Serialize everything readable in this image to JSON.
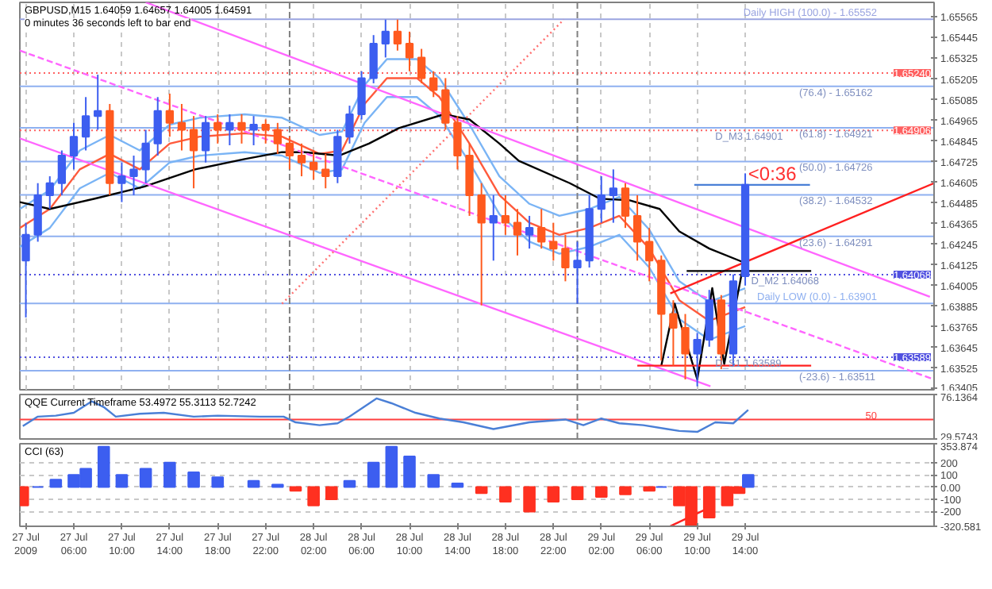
{
  "chart_data": [
    {
      "type": "candlestick",
      "title": "GBPUSD,M15  1.64059 1.64657 1.64005 1.64591",
      "annotations": [
        "0 minutes 36 seconds left to bar end",
        {
          "text": "<0:36",
          "x": "2009-07-29T14:15",
          "y": 1.6459
        },
        {
          "text": "D_M3 1.64901",
          "x": "2009-07-29T11:30",
          "y": 1.64906
        },
        {
          "text": "D_M2 1.64068",
          "x": "2009-07-29T14:30",
          "y": 1.64068
        },
        {
          "text": "D_S1 1.63589",
          "x": "2009-07-29T11:30",
          "y": 1.63589
        },
        {
          "text": "(76.4) - 1.65162",
          "x": "2009-07-29T18:30",
          "y": 1.65162
        },
        {
          "text": "(61.8) - 1.64921",
          "x": "2009-07-29T18:30",
          "y": 1.64921
        },
        {
          "text": "(50.0) - 1.64726",
          "x": "2009-07-29T18:30",
          "y": 1.64726
        },
        {
          "text": "(38.2) - 1.64532",
          "x": "2009-07-29T18:30",
          "y": 1.64532
        },
        {
          "text": "(23.6) - 1.64291",
          "x": "2009-07-29T18:30",
          "y": 1.64291
        },
        {
          "text": "(-23.6) - 1.63511",
          "x": "2009-07-29T18:30",
          "y": 1.63511
        }
      ],
      "x": [
        "2009-07-27T02:00",
        "2009-07-27T03:00",
        "2009-07-27T04:00",
        "2009-07-27T05:00",
        "2009-07-27T06:00",
        "2009-07-27T07:00",
        "2009-07-27T08:00",
        "2009-07-27T09:00",
        "2009-07-27T10:00",
        "2009-07-27T11:00",
        "2009-07-27T12:00",
        "2009-07-27T13:00",
        "2009-07-27T14:00",
        "2009-07-27T15:00",
        "2009-07-27T16:00",
        "2009-07-27T17:00",
        "2009-07-27T18:00",
        "2009-07-27T19:00",
        "2009-07-27T20:00",
        "2009-07-27T21:00",
        "2009-07-27T22:00",
        "2009-07-27T23:00",
        "2009-07-28T00:00",
        "2009-07-28T01:00",
        "2009-07-28T02:00",
        "2009-07-28T03:00",
        "2009-07-28T04:00",
        "2009-07-28T05:00",
        "2009-07-28T06:00",
        "2009-07-28T07:00",
        "2009-07-28T08:00",
        "2009-07-28T09:00",
        "2009-07-28T10:00",
        "2009-07-28T11:00",
        "2009-07-28T12:00",
        "2009-07-28T13:00",
        "2009-07-28T14:00",
        "2009-07-28T15:00",
        "2009-07-28T16:00",
        "2009-07-28T17:00",
        "2009-07-28T18:00",
        "2009-07-28T19:00",
        "2009-07-28T20:00",
        "2009-07-28T21:00",
        "2009-07-28T22:00",
        "2009-07-28T23:00",
        "2009-07-29T00:00",
        "2009-07-29T01:00",
        "2009-07-29T02:00",
        "2009-07-29T03:00",
        "2009-07-29T04:00",
        "2009-07-29T05:00",
        "2009-07-29T06:00",
        "2009-07-29T07:00",
        "2009-07-29T08:00",
        "2009-07-29T09:00",
        "2009-07-29T10:00",
        "2009-07-29T11:00",
        "2009-07-29T12:00",
        "2009-07-29T13:00",
        "2009-07-29T14:00"
      ],
      "ohlc": [
        [
          1.6415,
          1.6437,
          1.6382,
          1.643
        ],
        [
          1.643,
          1.646,
          1.6426,
          1.6453
        ],
        [
          1.6453,
          1.6464,
          1.6445,
          1.646
        ],
        [
          1.646,
          1.6479,
          1.6453,
          1.6476
        ],
        [
          1.6476,
          1.6495,
          1.6468,
          1.6487
        ],
        [
          1.6487,
          1.651,
          1.6479,
          1.6499
        ],
        [
          1.6499,
          1.6523,
          1.6491,
          1.6502
        ],
        [
          1.6502,
          1.6506,
          1.6453,
          1.646
        ],
        [
          1.646,
          1.6472,
          1.6449,
          1.6464
        ],
        [
          1.6464,
          1.6476,
          1.6453,
          1.6468
        ],
        [
          1.6468,
          1.6491,
          1.646,
          1.6483
        ],
        [
          1.6483,
          1.651,
          1.6476,
          1.6502
        ],
        [
          1.6502,
          1.6512,
          1.6487,
          1.6495
        ],
        [
          1.6495,
          1.6506,
          1.6479,
          1.6491
        ],
        [
          1.6491,
          1.6499,
          1.6457,
          1.6479
        ],
        [
          1.6479,
          1.6499,
          1.6472,
          1.6495
        ],
        [
          1.6495,
          1.65,
          1.6483,
          1.6491
        ],
        [
          1.6491,
          1.65,
          1.6482,
          1.6495
        ],
        [
          1.6495,
          1.65,
          1.6483,
          1.6491
        ],
        [
          1.6491,
          1.6499,
          1.6482,
          1.6494
        ],
        [
          1.6494,
          1.6497,
          1.6483,
          1.6491
        ],
        [
          1.6491,
          1.6495,
          1.6477,
          1.6483
        ],
        [
          1.6483,
          1.6487,
          1.6468,
          1.6476
        ],
        [
          1.6476,
          1.6483,
          1.6464,
          1.6472
        ],
        [
          1.6472,
          1.6479,
          1.6462,
          1.6468
        ],
        [
          1.6468,
          1.6477,
          1.6457,
          1.6464
        ],
        [
          1.6464,
          1.6491,
          1.646,
          1.6487
        ],
        [
          1.6487,
          1.6505,
          1.6483,
          1.65
        ],
        [
          1.65,
          1.6525,
          1.6497,
          1.6521
        ],
        [
          1.6521,
          1.6546,
          1.6518,
          1.6541
        ],
        [
          1.6541,
          1.6555,
          1.6533,
          1.6548
        ],
        [
          1.6548,
          1.6555,
          1.6537,
          1.6541
        ],
        [
          1.6541,
          1.6548,
          1.6525,
          1.6533
        ],
        [
          1.6533,
          1.6538,
          1.6518,
          1.6521
        ],
        [
          1.6521,
          1.6525,
          1.651,
          1.6514
        ],
        [
          1.6514,
          1.6521,
          1.6491,
          1.6495
        ],
        [
          1.6495,
          1.6499,
          1.6468,
          1.6476
        ],
        [
          1.6476,
          1.6483,
          1.6441,
          1.6453
        ],
        [
          1.6453,
          1.646,
          1.6389,
          1.6437
        ],
        [
          1.6437,
          1.6453,
          1.6415,
          1.6441
        ],
        [
          1.6441,
          1.6453,
          1.643,
          1.6437
        ],
        [
          1.6437,
          1.6445,
          1.6418,
          1.643
        ],
        [
          1.643,
          1.6441,
          1.6422,
          1.6434
        ],
        [
          1.6434,
          1.6445,
          1.6422,
          1.6426
        ],
        [
          1.6426,
          1.6437,
          1.6415,
          1.6422
        ],
        [
          1.6422,
          1.643,
          1.6403,
          1.6411
        ],
        [
          1.6411,
          1.6426,
          1.639,
          1.6415
        ],
        [
          1.6415,
          1.6453,
          1.6411,
          1.6445
        ],
        [
          1.6445,
          1.6464,
          1.6437,
          1.6453
        ],
        [
          1.6453,
          1.6468,
          1.6437,
          1.6457
        ],
        [
          1.6457,
          1.646,
          1.6434,
          1.6441
        ],
        [
          1.6441,
          1.6453,
          1.6415,
          1.6426
        ],
        [
          1.6426,
          1.6434,
          1.6403,
          1.6415
        ],
        [
          1.6415,
          1.6418,
          1.6357,
          1.6384
        ],
        [
          1.6384,
          1.6392,
          1.6354,
          1.6376
        ],
        [
          1.6376,
          1.6384,
          1.6346,
          1.6361
        ],
        [
          1.6361,
          1.6373,
          1.6342,
          1.6369
        ],
        [
          1.6369,
          1.6398,
          1.6365,
          1.6392
        ],
        [
          1.6392,
          1.6395,
          1.6352,
          1.6361
        ],
        [
          1.6361,
          1.6407,
          1.6354,
          1.6403
        ],
        [
          1.64059,
          1.64657,
          1.64005,
          1.64591
        ]
      ],
      "colors": [
        "#3c5ef0",
        "#3c5ef0",
        "#3c5ef0",
        "#3c5ef0",
        "#3c5ef0",
        "#3c5ef0",
        "#3c5ef0",
        "#ff5a1e",
        "#3c5ef0",
        "#3c5ef0",
        "#3c5ef0",
        "#3c5ef0",
        "#ff5a1e",
        "#ff5a1e",
        "#ff5a1e",
        "#3c5ef0",
        "#ff5a1e",
        "#3c5ef0",
        "#ff5a1e",
        "#3c5ef0",
        "#ff5a1e",
        "#ff5a1e",
        "#ff5a1e",
        "#ff5a1e",
        "#ff5a1e",
        "#ff5a1e",
        "#3c5ef0",
        "#3c5ef0",
        "#3c5ef0",
        "#3c5ef0",
        "#3c5ef0",
        "#ff5a1e",
        "#ff5a1e",
        "#ff5a1e",
        "#ff5a1e",
        "#ff5a1e",
        "#ff5a1e",
        "#ff5a1e",
        "#ff5a1e",
        "#3c5ef0",
        "#ff5a1e",
        "#ff5a1e",
        "#3c5ef0",
        "#ff5a1e",
        "#ff5a1e",
        "#ff5a1e",
        "#3c5ef0",
        "#3c5ef0",
        "#3c5ef0",
        "#3c5ef0",
        "#ff5a1e",
        "#ff5a1e",
        "#ff5a1e",
        "#ff5a1e",
        "#ff5a1e",
        "#ff5a1e",
        "#3c5ef0",
        "#3c5ef0",
        "#ff5a1e",
        "#3c5ef0",
        "#3c5ef0"
      ],
      "series": [
        {
          "type": "line",
          "color": "#7ab4f5",
          "x": [
            "2009-07-27T01:30",
            "2009-07-27T04:00",
            "2009-07-27T06:30",
            "2009-07-27T09:00",
            "2009-07-27T11:30",
            "2009-07-27T14:00",
            "2009-07-27T16:30",
            "2009-07-27T20:15",
            "2009-07-27T23:22",
            "2009-07-28T02:30",
            "2009-07-28T04:22",
            "2009-07-28T06:15",
            "2009-07-28T08:07",
            "2009-07-28T10:37",
            "2009-07-28T12:30",
            "2009-07-28T15:00",
            "2009-07-28T17:30",
            "2009-07-28T20:00",
            "2009-07-28T22:30",
            "2009-07-29T01:00",
            "2009-07-29T03:30",
            "2009-07-29T06:00",
            "2009-07-29T08:30",
            "2009-07-29T11:00",
            "2009-07-29T14:00"
          ],
          "values": [
            1.6445,
            1.6456,
            1.6479,
            1.6488,
            1.6479,
            1.6494,
            1.6498,
            1.65,
            1.6498,
            1.6488,
            1.649,
            1.6517,
            1.6532,
            1.6532,
            1.6521,
            1.6494,
            1.6464,
            1.6448,
            1.6441,
            1.6445,
            1.6452,
            1.6433,
            1.6403,
            1.6391,
            1.6399
          ]
        },
        {
          "type": "line",
          "color": "#7ab4f5",
          "x": [
            "2009-07-27T01:30",
            "2009-07-27T04:00",
            "2009-07-27T06:30",
            "2009-07-27T09:00",
            "2009-07-27T11:30",
            "2009-07-27T14:00",
            "2009-07-27T16:30",
            "2009-07-27T20:15",
            "2009-07-27T23:22",
            "2009-07-28T02:30",
            "2009-07-28T04:22",
            "2009-07-28T06:15",
            "2009-07-28T08:07",
            "2009-07-28T10:37",
            "2009-07-28T12:30",
            "2009-07-28T15:00",
            "2009-07-28T17:30",
            "2009-07-28T20:00",
            "2009-07-28T22:30",
            "2009-07-29T01:00",
            "2009-07-29T03:30",
            "2009-07-29T06:00",
            "2009-07-29T08:30",
            "2009-07-29T11:00",
            "2009-07-29T14:00"
          ],
          "values": [
            1.6423,
            1.6434,
            1.6457,
            1.6466,
            1.6457,
            1.6472,
            1.6476,
            1.6478,
            1.6476,
            1.6466,
            1.6468,
            1.6495,
            1.651,
            1.651,
            1.6499,
            1.6472,
            1.6442,
            1.6426,
            1.6419,
            1.6423,
            1.643,
            1.6411,
            1.6381,
            1.6369,
            1.6377
          ]
        },
        {
          "type": "line",
          "color": "#ff5a3c",
          "x": [
            "2009-07-27T01:30",
            "2009-07-27T04:00",
            "2009-07-27T06:30",
            "2009-07-27T09:00",
            "2009-07-27T11:30",
            "2009-07-27T14:00",
            "2009-07-27T16:30",
            "2009-07-27T20:15",
            "2009-07-27T23:22",
            "2009-07-28T02:30",
            "2009-07-28T04:22",
            "2009-07-28T06:15",
            "2009-07-28T08:07",
            "2009-07-28T10:37",
            "2009-07-28T12:30",
            "2009-07-28T15:00",
            "2009-07-28T17:30",
            "2009-07-28T20:00",
            "2009-07-28T22:30",
            "2009-07-29T01:00",
            "2009-07-29T03:30",
            "2009-07-29T06:00",
            "2009-07-29T08:30",
            "2009-07-29T11:00",
            "2009-07-29T14:00"
          ],
          "values": [
            1.6434,
            1.6445,
            1.6468,
            1.6477,
            1.6468,
            1.6483,
            1.6487,
            1.6489,
            1.6487,
            1.6477,
            1.6479,
            1.6506,
            1.6521,
            1.6521,
            1.651,
            1.6483,
            1.6453,
            1.6437,
            1.643,
            1.6434,
            1.6441,
            1.6422,
            1.6392,
            1.638,
            1.6388
          ]
        },
        {
          "type": "line",
          "color": "#000000",
          "x": [
            "2009-07-27T01:30",
            "2009-07-27T04:00",
            "2009-07-27T07:45",
            "2009-07-27T11:52",
            "2009-07-27T16:07",
            "2009-07-27T20:15",
            "2009-07-27T23:22",
            "2009-07-28T01:15",
            "2009-07-28T04:07",
            "2009-07-28T06:37",
            "2009-07-28T09:07",
            "2009-07-28T12:52",
            "2009-07-28T15:00",
            "2009-07-28T17:30",
            "2009-07-28T19:07",
            "2009-07-28T23:22",
            "2009-07-29T01:52",
            "2009-07-29T04:22",
            "2009-07-29T06:52",
            "2009-07-29T08:30",
            "2009-07-29T11:00",
            "2009-07-29T13:52"
          ],
          "values": [
            1.6449,
            1.6445,
            1.6451,
            1.6458,
            1.6468,
            1.6474,
            1.6478,
            1.6478,
            1.6476,
            1.6483,
            1.6492,
            1.65,
            1.6497,
            1.6483,
            1.6473,
            1.646,
            1.6451,
            1.645,
            1.6445,
            1.6432,
            1.6422,
            1.6414
          ]
        },
        {
          "type": "line",
          "color": "#ff66ff",
          "x": [
            "2009-07-27T12:00",
            "2009-07-30T05:24"
          ],
          "values": [
            1.6565,
            1.6394
          ]
        },
        {
          "type": "line",
          "color": "#ff66ff",
          "x": [
            "2009-07-27T01:30",
            "2009-07-29T11:06"
          ],
          "values": [
            1.6486,
            1.6342
          ]
        },
        {
          "type": "line",
          "color": "#ff66ff",
          "line_style": "dashed",
          "x": [
            "2009-07-27T01:30",
            "2009-07-30T05:45"
          ],
          "values": [
            1.6537,
            1.6346
          ]
        },
        {
          "type": "line",
          "color": "#ff7070",
          "line_style": "dotted",
          "x": [
            "2009-07-27T23:22",
            "2009-07-28T22:52"
          ],
          "values": [
            1.639,
            1.6555
          ]
        },
        {
          "type": "line",
          "color": "#ff2020",
          "x": [
            "2009-07-29T07:45",
            "2009-07-30T05:45"
          ],
          "values": [
            1.6396,
            1.646
          ]
        },
        {
          "type": "line",
          "color": "#000000",
          "x": [
            "2009-07-29T07:00",
            "2009-07-29T08:07",
            "2009-07-29T10:00",
            "2009-07-29T11:15",
            "2009-07-29T12:15",
            "2009-07-29T13:45"
          ],
          "values": [
            1.6354,
            1.639,
            1.6346,
            1.6399,
            1.6355,
            1.6409
          ]
        },
        {
          "type": "line",
          "color": "#000000",
          "x": [
            "2009-07-29T09:07",
            "2009-07-29T19:30"
          ],
          "values": [
            1.6409,
            1.6409
          ]
        },
        {
          "type": "line",
          "color": "#ff2020",
          "x": [
            "2009-07-29T05:00",
            "2009-07-29T19:30"
          ],
          "values": [
            1.6354,
            1.6354
          ]
        },
        {
          "type": "line",
          "color": "#4a7fd6",
          "x": [
            "2009-07-29T09:45",
            "2009-07-29T19:24"
          ],
          "values": [
            1.6459,
            1.6459
          ]
        }
      ],
      "xlim": [
        "2009-07-27T01:30",
        "2009-07-30T05:45"
      ],
      "xticks": [
        {
          "value": "2009-07-27T02:00",
          "label": null
        },
        {
          "value": "2009-07-27T06:00",
          "label": null
        },
        {
          "value": "2009-07-27T10:00",
          "label": null
        },
        {
          "value": "2009-07-27T14:00",
          "label": null
        },
        {
          "value": "2009-07-27T18:00",
          "label": null
        },
        {
          "value": "2009-07-27T22:00",
          "label": null
        },
        {
          "value": "2009-07-28T02:00",
          "label": null
        },
        {
          "value": "2009-07-28T06:00",
          "label": null
        },
        {
          "value": "2009-07-28T10:00",
          "label": null
        },
        {
          "value": "2009-07-28T14:00",
          "label": null
        },
        {
          "value": "2009-07-28T18:00",
          "label": null
        },
        {
          "value": "2009-07-28T22:00",
          "label": null
        },
        {
          "value": "2009-07-29T02:00",
          "label": null
        },
        {
          "value": "2009-07-29T06:00",
          "label": null
        },
        {
          "value": "2009-07-29T10:00",
          "label": null
        },
        {
          "value": "2009-07-29T14:00",
          "label": null
        }
      ],
      "ylim": [
        1.634,
        1.6565
      ],
      "yticks": [
        1.63405,
        1.63525,
        1.63645,
        1.63765,
        1.63885,
        1.64005,
        1.64125,
        1.64245,
        1.64365,
        1.64485,
        1.64605,
        1.64725,
        1.64845,
        1.64965,
        1.65085,
        1.65205,
        1.65325,
        1.65445,
        1.65565
      ],
      "tick_labels": "y",
      "grid": "x",
      "ref_lines": [
        {
          "axis": "y",
          "value": 1.65552,
          "label": "Daily HIGH (100.0) - 1.65552",
          "color": "#9aa4e0"
        },
        {
          "axis": "y",
          "value": 1.65162,
          "label": null,
          "color": "#8fb0f0"
        },
        {
          "axis": "y",
          "value": 1.64921,
          "label": null,
          "color": "#8fb0f0"
        },
        {
          "axis": "y",
          "value": 1.64726,
          "label": null,
          "color": "#8fb0f0"
        },
        {
          "axis": "y",
          "value": 1.64532,
          "label": null,
          "color": "#8fb0f0"
        },
        {
          "axis": "y",
          "value": 1.64291,
          "label": null,
          "color": "#8fb0f0"
        },
        {
          "axis": "y",
          "value": 1.63901,
          "label": "Daily LOW (0.0) - 1.63901",
          "color": "#8fb0f0"
        },
        {
          "axis": "y",
          "value": 1.63511,
          "label": null,
          "color": "#8fb0f0"
        },
        {
          "axis": "y",
          "value": 1.6524,
          "label": "1.65240",
          "color": "#ff6060",
          "line_style": "dotted"
        },
        {
          "axis": "y",
          "value": 1.64906,
          "label": "1.64906",
          "color": "#ff6060",
          "line_style": "dotted"
        },
        {
          "axis": "y",
          "value": 1.64068,
          "label": "1.64068",
          "color": "#5050e0",
          "line_style": "dotted"
        },
        {
          "axis": "y",
          "value": 1.63589,
          "label": "1.63589",
          "color": "#5050e0",
          "line_style": "dotted"
        },
        {
          "axis": "x",
          "value": "2009-07-28T00:00",
          "label": null,
          "color": "#808080",
          "line_style": "dashed"
        },
        {
          "axis": "x",
          "value": "2009-07-29T00:00",
          "label": null,
          "color": "#808080",
          "line_style": "dashed"
        }
      ]
    },
    {
      "type": "line",
      "title": "QQE Current Timeframe 53.4972 55.3113 52.7242",
      "series": [
        {
          "color": "#4a7fd6",
          "x": [
            "2009-07-27T01:45",
            "2009-07-27T03:00",
            "2009-07-27T04:30",
            "2009-07-27T06:00",
            "2009-07-27T07:30",
            "2009-07-27T08:30",
            "2009-07-27T09:30",
            "2009-07-27T11:30",
            "2009-07-27T13:30",
            "2009-07-27T16:00",
            "2009-07-27T18:00",
            "2009-07-27T21:30",
            "2009-07-27T23:30",
            "2009-07-28T00:30",
            "2009-07-28T02:30",
            "2009-07-28T04:00",
            "2009-07-28T05:00",
            "2009-07-28T07:15",
            "2009-07-28T08:30",
            "2009-07-28T10:30",
            "2009-07-28T12:30",
            "2009-07-28T14:30",
            "2009-07-28T17:00",
            "2009-07-28T20:00",
            "2009-07-28T23:00",
            "2009-07-29T00:30",
            "2009-07-29T02:00",
            "2009-07-29T03:30",
            "2009-07-29T05:30",
            "2009-07-29T07:30",
            "2009-07-29T08:30",
            "2009-07-29T10:00",
            "2009-07-29T11:30",
            "2009-07-29T13:00",
            "2009-07-29T14:15"
          ],
          "values": [
            43,
            53,
            54,
            57,
            69,
            63,
            53,
            56,
            57,
            53,
            54,
            53,
            53,
            47,
            44,
            46,
            53,
            72,
            67,
            57,
            51,
            47,
            40,
            47,
            50,
            44,
            51,
            46,
            44,
            40,
            38,
            37,
            47,
            46,
            60
          ]
        }
      ],
      "xlim": [
        "2009-07-27T01:30",
        "2009-07-30T05:45"
      ],
      "ylim": [
        29.5743,
        76.1364
      ],
      "yticks": [
        29.5743,
        76.1364
      ],
      "tick_labels": "y",
      "ref_lines": [
        {
          "axis": "y",
          "value": 50,
          "label": "50",
          "color": "#ff4040"
        },
        {
          "axis": "x",
          "value": "2009-07-28T00:00",
          "label": null,
          "color": "#808080",
          "line_style": "dashed"
        },
        {
          "axis": "x",
          "value": "2009-07-29T00:00",
          "label": null,
          "color": "#808080",
          "line_style": "dashed"
        }
      ]
    },
    {
      "type": "bar",
      "title": "CCI (63)",
      "x": [
        "2009-07-27T01:45",
        "2009-07-27T03:00",
        "2009-07-27T04:30",
        "2009-07-27T06:00",
        "2009-07-27T07:00",
        "2009-07-27T08:30",
        "2009-07-27T10:00",
        "2009-07-27T12:00",
        "2009-07-27T14:00",
        "2009-07-27T16:00",
        "2009-07-27T18:00",
        "2009-07-27T21:00",
        "2009-07-27T23:00",
        "2009-07-28T00:30",
        "2009-07-28T02:00",
        "2009-07-28T03:30",
        "2009-07-28T05:00",
        "2009-07-28T07:00",
        "2009-07-28T08:30",
        "2009-07-28T10:00",
        "2009-07-28T12:00",
        "2009-07-28T14:00",
        "2009-07-28T16:00",
        "2009-07-28T18:00",
        "2009-07-28T20:00",
        "2009-07-28T22:00",
        "2009-07-29T00:00",
        "2009-07-29T02:00",
        "2009-07-29T04:00",
        "2009-07-29T06:00",
        "2009-07-29T07:00",
        "2009-07-29T08:30",
        "2009-07-29T09:30",
        "2009-07-29T11:00",
        "2009-07-29T12:30",
        "2009-07-29T13:30",
        "2009-07-29T14:15"
      ],
      "values": [
        -150,
        0,
        60,
        100,
        150,
        330,
        100,
        150,
        200,
        120,
        80,
        50,
        20,
        -30,
        -150,
        -100,
        50,
        200,
        330,
        250,
        100,
        30,
        -50,
        -120,
        -200,
        -120,
        -100,
        -80,
        -60,
        -30,
        0,
        -150,
        -320,
        -250,
        -150,
        -50,
        100
      ],
      "colors": [
        "#ff3020",
        "#3c5ef0",
        "#3c5ef0",
        "#3c5ef0",
        "#3c5ef0",
        "#3c5ef0",
        "#3c5ef0",
        "#3c5ef0",
        "#3c5ef0",
        "#3c5ef0",
        "#3c5ef0",
        "#3c5ef0",
        "#3c5ef0",
        "#ff3020",
        "#ff3020",
        "#ff3020",
        "#3c5ef0",
        "#3c5ef0",
        "#3c5ef0",
        "#3c5ef0",
        "#3c5ef0",
        "#3c5ef0",
        "#ff3020",
        "#ff3020",
        "#ff3020",
        "#ff3020",
        "#ff3020",
        "#ff3020",
        "#ff3020",
        "#ff3020",
        "#3c5ef0",
        "#ff3020",
        "#ff3020",
        "#ff3020",
        "#ff3020",
        "#ff3020",
        "#3c5ef0"
      ],
      "series": [
        {
          "type": "line",
          "color": "#ff2020",
          "x": [
            "2009-07-29T07:45",
            "2009-07-29T10:45"
          ],
          "values": [
            -320,
            -180
          ]
        }
      ],
      "xlim": [
        "2009-07-27T01:30",
        "2009-07-30T05:45"
      ],
      "xticks": [
        {
          "value": "2009-07-27T02:00",
          "label": "27 Jul 2009"
        },
        {
          "value": "2009-07-27T06:00",
          "label": "27 Jul 06:00"
        },
        {
          "value": "2009-07-27T10:00",
          "label": "27 Jul 10:00"
        },
        {
          "value": "2009-07-27T14:00",
          "label": "27 Jul 14:00"
        },
        {
          "value": "2009-07-27T18:00",
          "label": "27 Jul 18:00"
        },
        {
          "value": "2009-07-27T22:00",
          "label": "27 Jul 22:00"
        },
        {
          "value": "2009-07-28T02:00",
          "label": "28 Jul 02:00"
        },
        {
          "value": "2009-07-28T06:00",
          "label": "28 Jul 06:00"
        },
        {
          "value": "2009-07-28T10:00",
          "label": "28 Jul 10:00"
        },
        {
          "value": "2009-07-28T14:00",
          "label": "28 Jul 14:00"
        },
        {
          "value": "2009-07-28T18:00",
          "label": "28 Jul 18:00"
        },
        {
          "value": "2009-07-28T22:00",
          "label": "28 Jul 22:00"
        },
        {
          "value": "2009-07-29T02:00",
          "label": "29 Jul 02:00"
        },
        {
          "value": "2009-07-29T06:00",
          "label": "29 Jul 06:00"
        },
        {
          "value": "2009-07-29T10:00",
          "label": "29 Jul 10:00"
        },
        {
          "value": "2009-07-29T14:00",
          "label": "29 Jul 14:00"
        }
      ],
      "ylim": [
        -320.581,
        353.874
      ],
      "yticks": [
        {
          "value": -320.581,
          "label": "-320.581"
        },
        -200,
        -100,
        {
          "value": 0,
          "label": "0.00"
        },
        100,
        200,
        {
          "value": 353.874,
          "label": "353.874"
        }
      ],
      "grid": "y"
    }
  ]
}
